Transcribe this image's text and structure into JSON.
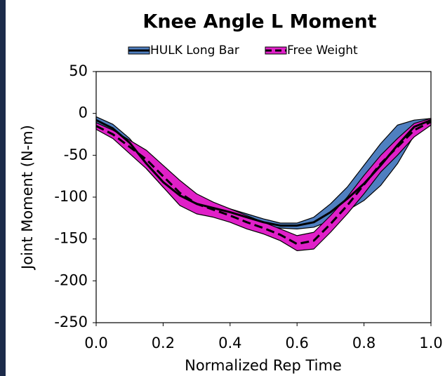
{
  "chart_data": {
    "type": "line",
    "title": "Knee Angle L Moment",
    "x_label": "Normalized Rep Time",
    "y_label": "Joint Moment (N-m)",
    "x": [
      0,
      0.05,
      0.1,
      0.15,
      0.2,
      0.25,
      0.3,
      0.35,
      0.4,
      0.45,
      0.5,
      0.55,
      0.6,
      0.65,
      0.7,
      0.75,
      0.8,
      0.85,
      0.9,
      0.95,
      1.0
    ],
    "series": [
      {
        "name": "HULK Long Bar",
        "color": "#4f7fc0",
        "values": [
          -8,
          -18,
          -35,
          -60,
          -82,
          -98,
          -108,
          -113,
          -118,
          -124,
          -130,
          -134,
          -134,
          -130,
          -118,
          -102,
          -84,
          -62,
          -38,
          -16,
          -8
        ],
        "upper": [
          -4,
          -13,
          -30,
          -54,
          -76,
          -92,
          -103,
          -109,
          -114,
          -120,
          -126,
          -131,
          -131,
          -124,
          -108,
          -88,
          -62,
          -36,
          -14,
          -8,
          -6
        ],
        "lower": [
          -12,
          -23,
          -40,
          -66,
          -88,
          -104,
          -113,
          -117,
          -122,
          -128,
          -134,
          -137,
          -138,
          -136,
          -128,
          -116,
          -104,
          -86,
          -60,
          -26,
          -12
        ]
      },
      {
        "name": "Free Weight",
        "color": "#e020c8",
        "values": [
          -15,
          -25,
          -40,
          -55,
          -75,
          -95,
          -108,
          -115,
          -122,
          -130,
          -137,
          -145,
          -156,
          -152,
          -132,
          -110,
          -85,
          -60,
          -40,
          -20,
          -10
        ],
        "upper": [
          -11,
          -20,
          -32,
          -44,
          -62,
          -80,
          -96,
          -106,
          -114,
          -122,
          -130,
          -138,
          -146,
          -142,
          -122,
          -100,
          -74,
          -50,
          -30,
          -12,
          -6
        ],
        "lower": [
          -19,
          -30,
          -48,
          -66,
          -88,
          -110,
          -120,
          -124,
          -130,
          -138,
          -144,
          -152,
          -164,
          -162,
          -142,
          -120,
          -96,
          -70,
          -50,
          -28,
          -14
        ]
      }
    ],
    "xlim": [
      0,
      1.0
    ],
    "xticks": [
      {
        "value": 0,
        "label": "0.0"
      },
      0.2,
      0.4,
      0.6,
      0.8,
      {
        "value": 1.0,
        "label": "1.0"
      }
    ],
    "ylim": [
      -250,
      50
    ],
    "yticks": [
      50,
      0,
      -50,
      -100,
      -150,
      -200,
      -250
    ],
    "grid": false,
    "legend": "top"
  }
}
